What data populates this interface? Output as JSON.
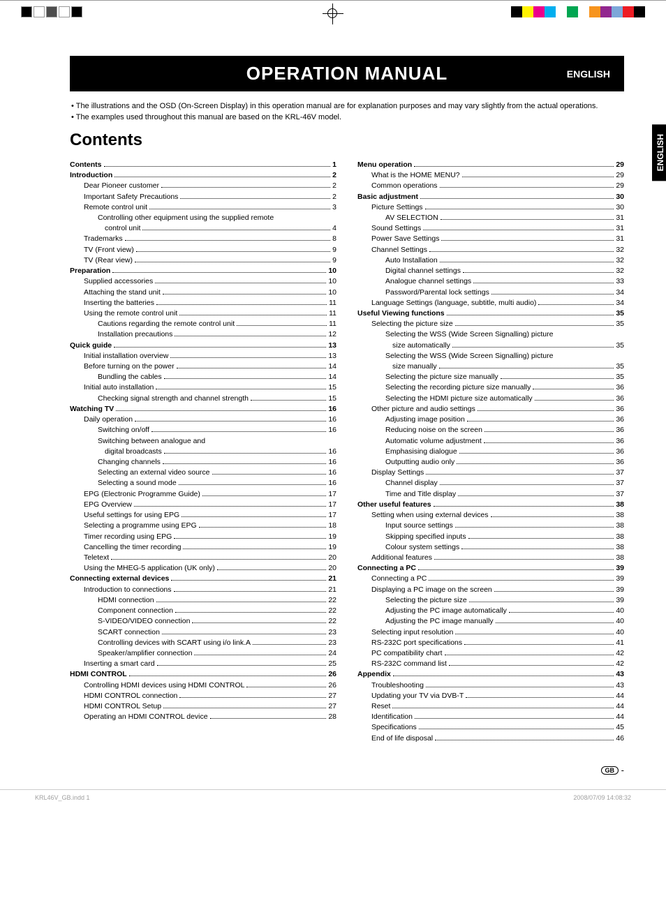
{
  "registration": {
    "left_colors": [
      "#000000",
      "#ffffff",
      "#4d4d4d",
      "#ffffff",
      "#000000"
    ],
    "right_colors": [
      "#000000",
      "#fff200",
      "#ec008c",
      "#00aeef",
      "#ffffff",
      "#00a651",
      "#ffffff",
      "#f7941d",
      "#92278f",
      "#7da7d9",
      "#ed1c24",
      "#000000"
    ]
  },
  "title": "OPERATION MANUAL",
  "title_lang": "ENGLISH",
  "side_tab": "ENGLISH",
  "notes": [
    "The illustrations and the OSD (On-Screen Display) in this operation manual are for explanation purposes and may vary slightly from the actual operations.",
    "The examples used throughout this manual are based on the KRL-46V model."
  ],
  "contents_heading": "Contents",
  "toc_left": [
    {
      "level": 0,
      "label": "Contents",
      "page": "1"
    },
    {
      "level": 0,
      "label": "Introduction",
      "page": "2"
    },
    {
      "level": 1,
      "label": "Dear Pioneer customer",
      "page": "2"
    },
    {
      "level": 1,
      "label": "Important Safety Precautions",
      "page": "2"
    },
    {
      "level": 1,
      "label": "Remote control unit",
      "page": "3"
    },
    {
      "level": 2,
      "label": "Controlling other equipment using the supplied remote control unit",
      "page": "4",
      "wrap": true
    },
    {
      "level": 1,
      "label": "Trademarks",
      "page": "8"
    },
    {
      "level": 1,
      "label": "TV (Front view)",
      "page": "9"
    },
    {
      "level": 1,
      "label": "TV (Rear view)",
      "page": "9"
    },
    {
      "level": 0,
      "label": "Preparation",
      "page": "10"
    },
    {
      "level": 1,
      "label": "Supplied accessories",
      "page": "10"
    },
    {
      "level": 1,
      "label": "Attaching the stand unit",
      "page": "10"
    },
    {
      "level": 1,
      "label": "Inserting the batteries",
      "page": "11"
    },
    {
      "level": 1,
      "label": "Using the remote control unit",
      "page": "11"
    },
    {
      "level": 2,
      "label": "Cautions regarding the remote control unit",
      "page": "11"
    },
    {
      "level": 2,
      "label": "Installation precautions",
      "page": "12"
    },
    {
      "level": 0,
      "label": "Quick guide",
      "page": "13"
    },
    {
      "level": 1,
      "label": "Initial installation overview",
      "page": "13"
    },
    {
      "level": 1,
      "label": "Before turning on the power",
      "page": "14"
    },
    {
      "level": 2,
      "label": "Bundling the cables",
      "page": "14"
    },
    {
      "level": 1,
      "label": "Initial auto installation",
      "page": "15"
    },
    {
      "level": 2,
      "label": "Checking signal strength and channel strength",
      "page": "15"
    },
    {
      "level": 0,
      "label": "Watching TV",
      "page": "16"
    },
    {
      "level": 1,
      "label": "Daily operation",
      "page": "16"
    },
    {
      "level": 2,
      "label": "Switching on/off",
      "page": "16"
    },
    {
      "level": 2,
      "label": "Switching between analogue and digital broadcasts",
      "page": "16",
      "wrap": true
    },
    {
      "level": 2,
      "label": "Changing channels",
      "page": "16"
    },
    {
      "level": 2,
      "label": "Selecting an external video source",
      "page": "16"
    },
    {
      "level": 2,
      "label": "Selecting a sound mode",
      "page": "16"
    },
    {
      "level": 1,
      "label": "EPG (Electronic Programme Guide)",
      "page": "17"
    },
    {
      "level": 1,
      "label": "EPG Overview",
      "page": "17"
    },
    {
      "level": 1,
      "label": "Useful settings for using EPG",
      "page": "17"
    },
    {
      "level": 1,
      "label": "Selecting a programme using EPG",
      "page": "18"
    },
    {
      "level": 1,
      "label": "Timer recording using EPG",
      "page": "19"
    },
    {
      "level": 1,
      "label": "Cancelling the timer recording",
      "page": "19"
    },
    {
      "level": 1,
      "label": "Teletext",
      "page": "20"
    },
    {
      "level": 1,
      "label": "Using the MHEG-5 application (UK only)",
      "page": "20"
    },
    {
      "level": 0,
      "label": "Connecting external devices",
      "page": "21"
    },
    {
      "level": 1,
      "label": "Introduction to connections",
      "page": "21"
    },
    {
      "level": 2,
      "label": "HDMI connection",
      "page": "22"
    },
    {
      "level": 2,
      "label": "Component connection",
      "page": "22"
    },
    {
      "level": 2,
      "label": "S-VIDEO/VIDEO connection",
      "page": "22"
    },
    {
      "level": 2,
      "label": "SCART connection",
      "page": "23"
    },
    {
      "level": 2,
      "label": "Controlling devices with SCART using i/o link.A",
      "page": "23"
    },
    {
      "level": 2,
      "label": "Speaker/amplifier connection",
      "page": "24"
    },
    {
      "level": 1,
      "label": "Inserting a smart card",
      "page": "25"
    },
    {
      "level": 0,
      "label": "HDMI CONTROL",
      "page": "26"
    },
    {
      "level": 1,
      "label": "Controlling HDMI devices using HDMI CONTROL",
      "page": "26"
    },
    {
      "level": 1,
      "label": "HDMI CONTROL connection",
      "page": "27"
    },
    {
      "level": 1,
      "label": "HDMI CONTROL Setup",
      "page": "27"
    },
    {
      "level": 1,
      "label": "Operating an HDMI CONTROL device",
      "page": "28"
    }
  ],
  "toc_right": [
    {
      "level": 0,
      "label": "Menu operation",
      "page": "29"
    },
    {
      "level": 1,
      "label": "What is the HOME MENU?",
      "page": "29"
    },
    {
      "level": 1,
      "label": "Common operations",
      "page": "29"
    },
    {
      "level": 0,
      "label": "Basic adjustment",
      "page": "30"
    },
    {
      "level": 1,
      "label": "Picture Settings",
      "page": "30"
    },
    {
      "level": 2,
      "label": "AV SELECTION",
      "page": "31"
    },
    {
      "level": 1,
      "label": "Sound Settings",
      "page": "31"
    },
    {
      "level": 1,
      "label": "Power Save Settings",
      "page": "31"
    },
    {
      "level": 1,
      "label": "Channel Settings",
      "page": "32"
    },
    {
      "level": 2,
      "label": "Auto Installation",
      "page": "32"
    },
    {
      "level": 2,
      "label": "Digital channel settings",
      "page": "32"
    },
    {
      "level": 2,
      "label": "Analogue channel settings",
      "page": "33"
    },
    {
      "level": 2,
      "label": "Password/Parental lock settings",
      "page": "34"
    },
    {
      "level": 1,
      "label": "Language Settings (language, subtitle, multi audio)",
      "page": "34"
    },
    {
      "level": 0,
      "label": "Useful Viewing functions",
      "page": "35"
    },
    {
      "level": 1,
      "label": "Selecting the picture size",
      "page": "35"
    },
    {
      "level": 2,
      "label": "Selecting the WSS (Wide Screen Signalling) picture size automatically",
      "page": "35",
      "wrap": true
    },
    {
      "level": 2,
      "label": "Selecting the WSS (Wide Screen Signalling) picture size manually",
      "page": "35",
      "wrap": true
    },
    {
      "level": 2,
      "label": "Selecting the picture size manually",
      "page": "35"
    },
    {
      "level": 2,
      "label": "Selecting the recording picture size manually",
      "page": "36"
    },
    {
      "level": 2,
      "label": "Selecting the HDMI picture size automatically",
      "page": "36"
    },
    {
      "level": 1,
      "label": "Other picture and audio settings",
      "page": "36"
    },
    {
      "level": 2,
      "label": "Adjusting image position",
      "page": "36"
    },
    {
      "level": 2,
      "label": "Reducing noise on the screen",
      "page": "36"
    },
    {
      "level": 2,
      "label": "Automatic volume adjustment",
      "page": "36"
    },
    {
      "level": 2,
      "label": "Emphasising dialogue",
      "page": "36"
    },
    {
      "level": 2,
      "label": "Outputting audio only",
      "page": "36"
    },
    {
      "level": 1,
      "label": "Display Settings",
      "page": "37"
    },
    {
      "level": 2,
      "label": "Channel display",
      "page": "37"
    },
    {
      "level": 2,
      "label": "Time and Title display",
      "page": "37"
    },
    {
      "level": 0,
      "label": "Other useful features",
      "page": "38"
    },
    {
      "level": 1,
      "label": "Setting when using external devices",
      "page": "38"
    },
    {
      "level": 2,
      "label": "Input source settings",
      "page": "38"
    },
    {
      "level": 2,
      "label": "Skipping specified inputs",
      "page": "38"
    },
    {
      "level": 2,
      "label": "Colour system settings",
      "page": "38"
    },
    {
      "level": 1,
      "label": "Additional features",
      "page": "38"
    },
    {
      "level": 0,
      "label": "Connecting a PC",
      "page": "39"
    },
    {
      "level": 1,
      "label": "Connecting a PC",
      "page": "39"
    },
    {
      "level": 1,
      "label": "Displaying a PC image on the screen",
      "page": "39"
    },
    {
      "level": 2,
      "label": "Selecting the picture size",
      "page": "39"
    },
    {
      "level": 2,
      "label": "Adjusting the PC image automatically",
      "page": "40"
    },
    {
      "level": 2,
      "label": "Adjusting the PC image manually",
      "page": "40"
    },
    {
      "level": 1,
      "label": "Selecting input resolution",
      "page": "40"
    },
    {
      "level": 1,
      "label": "RS-232C port specifications",
      "page": "41"
    },
    {
      "level": 1,
      "label": "PC compatibility chart",
      "page": "42"
    },
    {
      "level": 1,
      "label": "RS-232C command list",
      "page": "42"
    },
    {
      "level": 0,
      "label": "Appendix",
      "page": "43"
    },
    {
      "level": 1,
      "label": "Troubleshooting",
      "page": "43"
    },
    {
      "level": 1,
      "label": "Updating your TV via DVB-T",
      "page": "44"
    },
    {
      "level": 1,
      "label": "Reset",
      "page": "44"
    },
    {
      "level": 1,
      "label": "Identification",
      "page": "44"
    },
    {
      "level": 1,
      "label": "Specifications",
      "page": "45"
    },
    {
      "level": 1,
      "label": "End of life disposal",
      "page": "46"
    }
  ],
  "page_badge": {
    "code": "GB",
    "dash": "-"
  },
  "footer": {
    "left": "KRL46V_GB.indd   1",
    "right": "2008/07/09   14:08:32"
  }
}
